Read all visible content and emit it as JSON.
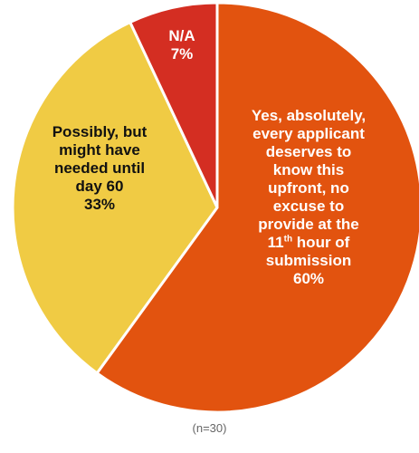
{
  "chart_data": {
    "type": "pie",
    "slices": [
      {
        "label_lines": [
          "Yes, absolutely,",
          "every applicant",
          "deserves to",
          "know this",
          "upfront, no",
          "excuse to",
          "provide at the"
        ],
        "label_ordinal_num": "11",
        "label_ordinal_sup": "th",
        "label_ordinal_rest": " hour of",
        "label_tail_lines": [
          "submission"
        ],
        "value": 60,
        "value_label": "60%",
        "color": "#E2530F"
      },
      {
        "label_lines": [
          "Possibly, but",
          "might have",
          "needed until",
          "day 60"
        ],
        "value": 33,
        "value_label": "33%",
        "color": "#F0CB44"
      },
      {
        "label_lines": [
          "N/A"
        ],
        "value": 7,
        "value_label": "7%",
        "color": "#D42E22"
      }
    ],
    "footnote": "(n=30)"
  }
}
